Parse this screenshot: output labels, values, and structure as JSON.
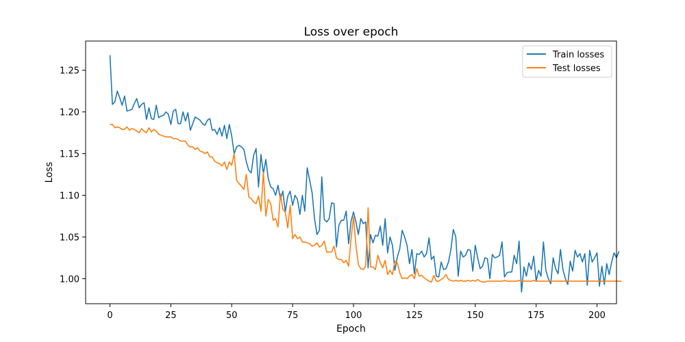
{
  "chart_data": {
    "type": "line",
    "title": "Loss over epoch",
    "xlabel": "Epoch",
    "ylabel": "Loss",
    "xlim": [
      -10,
      208
    ],
    "ylim": [
      0.97,
      1.285
    ],
    "xticks": [
      0,
      25,
      50,
      75,
      100,
      125,
      150,
      175,
      200
    ],
    "yticks": [
      1.0,
      1.05,
      1.1,
      1.15,
      1.2,
      1.25
    ],
    "xtick_labels": [
      "0",
      "25",
      "50",
      "75",
      "100",
      "125",
      "150",
      "175",
      "200"
    ],
    "ytick_labels": [
      "1.00",
      "1.05",
      "1.10",
      "1.15",
      "1.20",
      "1.25"
    ],
    "grid": false,
    "legend_position": "top-right",
    "x_start": 0,
    "x_step": 1,
    "series": [
      {
        "name": "Train losses",
        "color": "#1f77b4",
        "values": [
          1.268,
          1.209,
          1.212,
          1.225,
          1.217,
          1.208,
          1.219,
          1.201,
          1.202,
          1.203,
          1.21,
          1.216,
          1.205,
          1.209,
          1.211,
          1.191,
          1.205,
          1.192,
          1.191,
          1.208,
          1.193,
          1.195,
          1.196,
          1.2,
          1.197,
          1.185,
          1.201,
          1.203,
          1.186,
          1.186,
          1.2,
          1.189,
          1.199,
          1.178,
          1.186,
          1.194,
          1.192,
          1.19,
          1.186,
          1.184,
          1.19,
          1.192,
          1.178,
          1.179,
          1.173,
          1.181,
          1.171,
          1.184,
          1.168,
          1.185,
          1.171,
          1.15,
          1.158,
          1.16,
          1.158,
          1.155,
          1.14,
          1.13,
          1.127,
          1.148,
          1.156,
          1.11,
          1.149,
          1.126,
          1.143,
          1.12,
          1.11,
          1.108,
          1.1,
          1.112,
          1.095,
          1.105,
          1.08,
          1.099,
          1.105,
          1.088,
          1.1,
          1.095,
          1.077,
          1.1,
          1.081,
          1.133,
          1.118,
          1.103,
          1.072,
          1.053,
          1.058,
          1.122,
          1.071,
          1.068,
          1.072,
          1.091,
          1.09,
          1.038,
          1.064,
          1.07,
          1.07,
          1.081,
          1.042,
          1.069,
          1.08,
          1.068,
          1.053,
          1.072,
          1.066,
          1.068,
          1.013,
          1.053,
          1.043,
          1.052,
          1.051,
          1.063,
          1.04,
          1.072,
          1.031,
          1.05,
          1.04,
          1.01,
          1.026,
          1.036,
          1.058,
          1.05,
          1.04,
          1.018,
          1.035,
          1.006,
          1.03,
          1.029,
          1.033,
          1.026,
          1.03,
          1.049,
          1.023,
          1.027,
          1.003,
          1.002,
          1.02,
          1.011,
          1.012,
          1.02,
          1.035,
          1.059,
          1.05,
          1.003,
          1.033,
          1.026,
          1.028,
          1.035,
          1.034,
          1.009,
          1.04,
          1.025,
          1.012,
          1.015,
          1.025,
          1.024,
          1.0,
          1.029,
          1.025,
          1.026,
          1.028,
          1.044,
          1.002,
          1.007,
          1.008,
          1.008,
          1.028,
          1.018,
          1.045,
          0.984,
          1.014,
          1.003,
          1.019,
          1.011,
          1.027,
          0.997,
          1.01,
          1.003,
          1.044,
          1.01,
          1.0,
          0.994,
          1.025,
          1.012,
          1.006,
          1.035,
          1.011,
          1.0,
          0.993,
          1.021,
          1.009,
          1.034,
          1.026,
          1.03,
          1.02,
          1.03,
          0.992,
          1.034,
          1.02,
          1.025,
          1.031,
          0.991,
          1.015,
          0.993,
          1.018,
          1.005,
          1.02,
          1.031,
          1.025,
          1.033
        ]
      },
      {
        "name": "Test losses",
        "color": "#ff7f0e",
        "values": [
          1.185,
          1.185,
          1.181,
          1.182,
          1.181,
          1.179,
          1.179,
          1.182,
          1.178,
          1.18,
          1.179,
          1.177,
          1.175,
          1.18,
          1.177,
          1.175,
          1.181,
          1.176,
          1.179,
          1.177,
          1.173,
          1.172,
          1.171,
          1.17,
          1.17,
          1.17,
          1.168,
          1.168,
          1.167,
          1.165,
          1.165,
          1.165,
          1.16,
          1.158,
          1.158,
          1.155,
          1.157,
          1.153,
          1.152,
          1.15,
          1.152,
          1.146,
          1.146,
          1.141,
          1.139,
          1.138,
          1.135,
          1.14,
          1.131,
          1.14,
          1.136,
          1.15,
          1.118,
          1.114,
          1.111,
          1.107,
          1.125,
          1.098,
          1.096,
          1.092,
          1.09,
          1.099,
          1.081,
          1.128,
          1.075,
          1.095,
          1.09,
          1.07,
          1.072,
          1.062,
          1.102,
          1.083,
          1.08,
          1.061,
          1.088,
          1.048,
          1.053,
          1.048,
          1.05,
          1.044,
          1.044,
          1.043,
          1.042,
          1.039,
          1.04,
          1.043,
          1.038,
          1.04,
          1.045,
          1.032,
          1.032,
          1.032,
          1.039,
          1.025,
          1.023,
          1.023,
          1.019,
          1.022,
          1.015,
          1.048,
          1.074,
          1.04,
          1.017,
          1.012,
          1.011,
          1.015,
          1.085,
          1.014,
          1.014,
          1.011,
          1.028,
          1.019,
          1.013,
          1.022,
          1.005,
          1.01,
          1.005,
          1.021,
          1.019,
          1.007,
          1.0,
          1.001,
          1.0,
          1.003,
          1.005,
          1.0,
          1.012,
          1.003,
          1.004,
          1.001,
          0.999,
          0.997,
          0.996,
          1.004,
          0.997,
          0.997,
          0.999,
          1.001,
          1.005,
          0.999,
          0.998,
          0.997,
          0.998,
          0.997,
          0.998,
          0.997,
          0.997,
          0.998,
          0.997,
          0.998,
          0.997,
          0.999,
          0.997,
          0.996,
          0.996,
          0.997,
          0.997,
          0.997,
          0.997,
          0.997,
          0.997,
          0.997,
          0.998,
          0.997,
          0.997,
          0.997,
          0.997,
          0.997,
          0.998,
          0.997,
          0.997,
          0.997,
          0.997,
          0.997,
          0.998,
          0.997,
          0.997,
          0.997,
          0.997,
          0.997,
          0.997,
          0.997,
          0.997,
          0.997,
          0.997,
          0.997,
          0.997,
          0.997,
          0.997,
          0.997,
          0.997,
          0.997,
          0.997,
          0.997,
          0.997,
          0.997,
          0.997,
          0.997,
          0.997,
          0.997,
          0.997,
          0.997,
          0.997,
          0.997,
          0.997,
          0.997,
          0.997,
          0.997,
          0.997,
          0.997,
          0.997
        ]
      }
    ]
  }
}
